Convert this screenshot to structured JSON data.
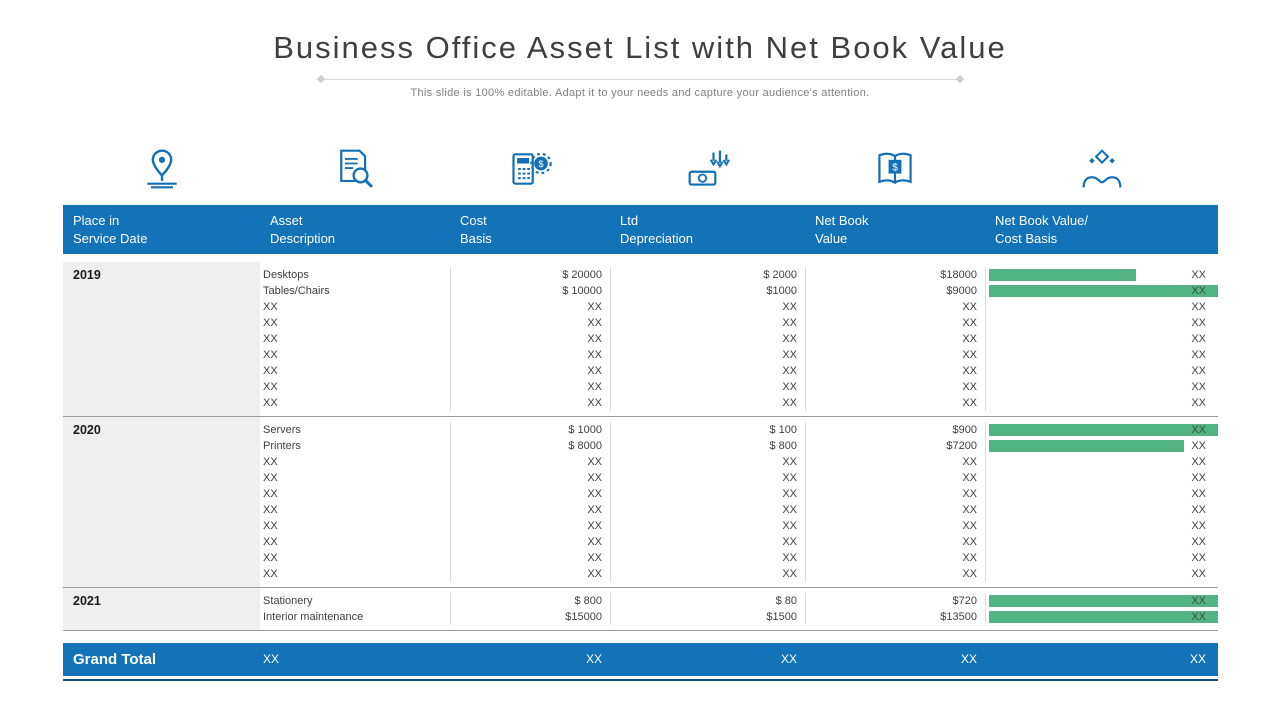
{
  "title": "Business Office Asset List with Net Book Value",
  "subtitle": "This slide is 100% editable. Adapt it to your needs and capture your audience's attention.",
  "colors": {
    "header_blue": "#1273B8",
    "bar_green": "#53B483",
    "year_column_bg": "#EFEFEF",
    "accent_line_blue": "#0D4D7F",
    "icon_blue": "#1470B4"
  },
  "icons": [
    "map-pin-icon",
    "document-search-icon",
    "calculator-gear-icon",
    "money-depreciation-icon",
    "book-dollar-icon",
    "hands-gear-icon"
  ],
  "table": {
    "headers": [
      {
        "line1": "Place in",
        "line2": "Service Date"
      },
      {
        "line1": "Asset",
        "line2": "Description"
      },
      {
        "line1": "Cost",
        "line2": "Basis"
      },
      {
        "line1": "Ltd",
        "line2": "Depreciation"
      },
      {
        "line1": "Net Book",
        "line2": "Value"
      },
      {
        "line1": "Net Book Value/",
        "line2": "Cost Basis"
      }
    ],
    "groups": [
      {
        "year": "2019",
        "rows": [
          {
            "description": "Desktops",
            "cost_basis": "$ 20000",
            "ltd_depreciation": "$ 2000",
            "net_book_value": "$18000",
            "ratio_label": "XX",
            "bar_pct": 64,
            "bar_label_inside": false
          },
          {
            "description": "Tables/Chairs",
            "cost_basis": "$ 10000",
            "ltd_depreciation": "$1000",
            "net_book_value": "$9000",
            "ratio_label": "XX",
            "bar_pct": 100,
            "bar_label_inside": true
          },
          {
            "description": "XX",
            "cost_basis": "XX",
            "ltd_depreciation": "XX",
            "net_book_value": "XX",
            "ratio_label": "XX",
            "bar_pct": null,
            "bar_label_inside": false
          },
          {
            "description": "XX",
            "cost_basis": "XX",
            "ltd_depreciation": "XX",
            "net_book_value": "XX",
            "ratio_label": "XX",
            "bar_pct": null,
            "bar_label_inside": false
          },
          {
            "description": "XX",
            "cost_basis": "XX",
            "ltd_depreciation": "XX",
            "net_book_value": "XX",
            "ratio_label": "XX",
            "bar_pct": null,
            "bar_label_inside": false
          },
          {
            "description": "XX",
            "cost_basis": "XX",
            "ltd_depreciation": "XX",
            "net_book_value": "XX",
            "ratio_label": "XX",
            "bar_pct": null,
            "bar_label_inside": false
          },
          {
            "description": "XX",
            "cost_basis": "XX",
            "ltd_depreciation": "XX",
            "net_book_value": "XX",
            "ratio_label": "XX",
            "bar_pct": null,
            "bar_label_inside": false
          },
          {
            "description": "XX",
            "cost_basis": "XX",
            "ltd_depreciation": "XX",
            "net_book_value": "XX",
            "ratio_label": "XX",
            "bar_pct": null,
            "bar_label_inside": false
          },
          {
            "description": "XX",
            "cost_basis": "XX",
            "ltd_depreciation": "XX",
            "net_book_value": "XX",
            "ratio_label": "XX",
            "bar_pct": null,
            "bar_label_inside": false
          }
        ]
      },
      {
        "year": "2020",
        "rows": [
          {
            "description": "Servers",
            "cost_basis": "$ 1000",
            "ltd_depreciation": "$ 100",
            "net_book_value": "$900",
            "ratio_label": "XX",
            "bar_pct": 100,
            "bar_label_inside": true
          },
          {
            "description": "Printers",
            "cost_basis": "$ 8000",
            "ltd_depreciation": "$ 800",
            "net_book_value": "$7200",
            "ratio_label": "XX",
            "bar_pct": 85,
            "bar_label_inside": false
          },
          {
            "description": "XX",
            "cost_basis": "XX",
            "ltd_depreciation": "XX",
            "net_book_value": "XX",
            "ratio_label": "XX",
            "bar_pct": null,
            "bar_label_inside": false
          },
          {
            "description": "XX",
            "cost_basis": "XX",
            "ltd_depreciation": "XX",
            "net_book_value": "XX",
            "ratio_label": "XX",
            "bar_pct": null,
            "bar_label_inside": false
          },
          {
            "description": "XX",
            "cost_basis": "XX",
            "ltd_depreciation": "XX",
            "net_book_value": "XX",
            "ratio_label": "XX",
            "bar_pct": null,
            "bar_label_inside": false
          },
          {
            "description": "XX",
            "cost_basis": "XX",
            "ltd_depreciation": "XX",
            "net_book_value": "XX",
            "ratio_label": "XX",
            "bar_pct": null,
            "bar_label_inside": false
          },
          {
            "description": "XX",
            "cost_basis": "XX",
            "ltd_depreciation": "XX",
            "net_book_value": "XX",
            "ratio_label": "XX",
            "bar_pct": null,
            "bar_label_inside": false
          },
          {
            "description": "XX",
            "cost_basis": "XX",
            "ltd_depreciation": "XX",
            "net_book_value": "XX",
            "ratio_label": "XX",
            "bar_pct": null,
            "bar_label_inside": false
          },
          {
            "description": "XX",
            "cost_basis": "XX",
            "ltd_depreciation": "XX",
            "net_book_value": "XX",
            "ratio_label": "XX",
            "bar_pct": null,
            "bar_label_inside": false
          },
          {
            "description": "XX",
            "cost_basis": "XX",
            "ltd_depreciation": "XX",
            "net_book_value": "XX",
            "ratio_label": "XX",
            "bar_pct": null,
            "bar_label_inside": false
          }
        ]
      },
      {
        "year": "2021",
        "rows": [
          {
            "description": "Stationery",
            "cost_basis": "$ 800",
            "ltd_depreciation": "$ 80",
            "net_book_value": "$720",
            "ratio_label": "XX",
            "bar_pct": 100,
            "bar_label_inside": true
          },
          {
            "description": "Interior maintenance",
            "cost_basis": "$15000",
            "ltd_depreciation": "$1500",
            "net_book_value": "$13500",
            "ratio_label": "XX",
            "bar_pct": 100,
            "bar_label_inside": true
          }
        ]
      }
    ],
    "grand_total": {
      "label": "Grand Total",
      "description": "XX",
      "cost_basis": "XX",
      "ltd_depreciation": "XX",
      "net_book_value": "XX",
      "ratio": "XX"
    }
  }
}
